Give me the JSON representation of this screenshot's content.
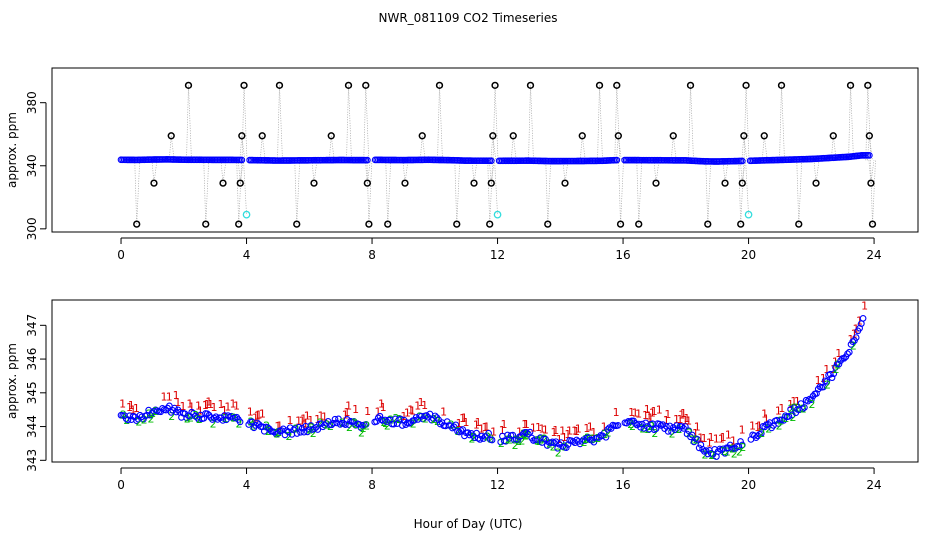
{
  "title": "NWR_081109  CO2 Timeseries",
  "xlabel": "Hour of Day (UTC)",
  "colors": {
    "blue": "#0000ff",
    "black": "#000000",
    "cyan": "#33dddd",
    "green": "#00bb00",
    "red": "#dd0000",
    "grey": "#9a9a9a"
  },
  "chart_data": [
    {
      "type": "scatter",
      "name": "top-panel",
      "ylabel": "approx. ppm",
      "xlim": [
        -2.2,
        25.4
      ],
      "ylim": [
        298,
        402
      ],
      "xticks": [
        0,
        4,
        8,
        12,
        16,
        20,
        24
      ],
      "yticks": [
        300,
        340,
        380
      ],
      "xtick_labels": [
        "0",
        "4",
        "8",
        "12",
        "16",
        "20",
        "24"
      ],
      "ytick_labels": [
        "300",
        "340",
        "380"
      ],
      "baseline": {
        "from_hour": 0,
        "to_hour": 23.9,
        "typical_ppm": 343.5,
        "description": "continuous ~343-347 ppm trace (blue circles)"
      },
      "spikes_high_ppm": 391,
      "spikes_mid_ppm": 359,
      "spikes_low_ppm": 329,
      "spikes_bottom_ppm": 303,
      "calibration_ppm": 309,
      "spikes": [
        {
          "x": 0.5,
          "y": 303
        },
        {
          "x": 1.05,
          "y": 329
        },
        {
          "x": 1.6,
          "y": 359
        },
        {
          "x": 2.15,
          "y": 391
        },
        {
          "x": 2.7,
          "y": 303
        },
        {
          "x": 3.25,
          "y": 329
        },
        {
          "x": 3.75,
          "y": 303
        },
        {
          "x": 3.8,
          "y": 329
        },
        {
          "x": 3.85,
          "y": 359
        },
        {
          "x": 3.92,
          "y": 391
        },
        {
          "x": 4.5,
          "y": 359
        },
        {
          "x": 5.05,
          "y": 391
        },
        {
          "x": 5.6,
          "y": 303
        },
        {
          "x": 6.15,
          "y": 329
        },
        {
          "x": 6.7,
          "y": 359
        },
        {
          "x": 7.25,
          "y": 391
        },
        {
          "x": 7.8,
          "y": 391
        },
        {
          "x": 7.85,
          "y": 329
        },
        {
          "x": 7.9,
          "y": 303
        },
        {
          "x": 8.5,
          "y": 303
        },
        {
          "x": 9.05,
          "y": 329
        },
        {
          "x": 9.6,
          "y": 359
        },
        {
          "x": 10.15,
          "y": 391
        },
        {
          "x": 10.7,
          "y": 303
        },
        {
          "x": 11.25,
          "y": 329
        },
        {
          "x": 11.75,
          "y": 303
        },
        {
          "x": 11.8,
          "y": 329
        },
        {
          "x": 11.85,
          "y": 359
        },
        {
          "x": 11.92,
          "y": 391
        },
        {
          "x": 12.5,
          "y": 359
        },
        {
          "x": 13.05,
          "y": 391
        },
        {
          "x": 13.6,
          "y": 303
        },
        {
          "x": 14.15,
          "y": 329
        },
        {
          "x": 14.7,
          "y": 359
        },
        {
          "x": 15.25,
          "y": 391
        },
        {
          "x": 15.8,
          "y": 391
        },
        {
          "x": 15.85,
          "y": 359
        },
        {
          "x": 15.92,
          "y": 303
        },
        {
          "x": 16.5,
          "y": 303
        },
        {
          "x": 17.05,
          "y": 329
        },
        {
          "x": 17.6,
          "y": 359
        },
        {
          "x": 18.15,
          "y": 391
        },
        {
          "x": 18.7,
          "y": 303
        },
        {
          "x": 19.25,
          "y": 329
        },
        {
          "x": 19.75,
          "y": 303
        },
        {
          "x": 19.8,
          "y": 329
        },
        {
          "x": 19.85,
          "y": 359
        },
        {
          "x": 19.92,
          "y": 391
        },
        {
          "x": 20.5,
          "y": 359
        },
        {
          "x": 21.05,
          "y": 391
        },
        {
          "x": 21.6,
          "y": 303
        },
        {
          "x": 22.15,
          "y": 329
        },
        {
          "x": 22.7,
          "y": 359
        },
        {
          "x": 23.25,
          "y": 391
        },
        {
          "x": 23.8,
          "y": 391
        },
        {
          "x": 23.85,
          "y": 359
        },
        {
          "x": 23.9,
          "y": 329
        },
        {
          "x": 23.95,
          "y": 303
        }
      ],
      "calibration_points": [
        {
          "x": 4.0,
          "y": 309
        },
        {
          "x": 12.0,
          "y": 309
        },
        {
          "x": 20.0,
          "y": 309
        }
      ]
    },
    {
      "type": "scatter",
      "name": "bottom-panel",
      "ylabel": "approx. ppm",
      "xlim": [
        -2.2,
        25.4
      ],
      "ylim": [
        342.95,
        347.75
      ],
      "xticks": [
        0,
        4,
        8,
        12,
        16,
        20,
        24
      ],
      "yticks": [
        343,
        344,
        345,
        346,
        347
      ],
      "xtick_labels": [
        "0",
        "4",
        "8",
        "12",
        "16",
        "20",
        "24"
      ],
      "ytick_labels": [
        "343",
        "344",
        "345",
        "346",
        "347"
      ],
      "marker_labels": [
        "1",
        "2"
      ],
      "gaps_hours": [
        [
          3.85,
          4.05
        ],
        [
          7.85,
          8.05
        ],
        [
          11.85,
          12.05
        ],
        [
          15.85,
          16.05
        ],
        [
          19.85,
          20.05
        ]
      ],
      "trend": [
        {
          "x": 0.0,
          "y": 344.3
        },
        {
          "x": 0.5,
          "y": 344.2
        },
        {
          "x": 1.0,
          "y": 344.45
        },
        {
          "x": 1.5,
          "y": 344.55
        },
        {
          "x": 2.0,
          "y": 344.35
        },
        {
          "x": 3.0,
          "y": 344.25
        },
        {
          "x": 3.8,
          "y": 344.2
        },
        {
          "x": 4.1,
          "y": 344.1
        },
        {
          "x": 5.0,
          "y": 343.8
        },
        {
          "x": 6.0,
          "y": 343.95
        },
        {
          "x": 7.0,
          "y": 344.15
        },
        {
          "x": 7.8,
          "y": 344.05
        },
        {
          "x": 8.1,
          "y": 344.25
        },
        {
          "x": 9.0,
          "y": 344.1
        },
        {
          "x": 9.8,
          "y": 344.3
        },
        {
          "x": 10.5,
          "y": 344.05
        },
        {
          "x": 11.0,
          "y": 343.75
        },
        {
          "x": 11.8,
          "y": 343.7
        },
        {
          "x": 12.1,
          "y": 343.65
        },
        {
          "x": 13.0,
          "y": 343.75
        },
        {
          "x": 13.7,
          "y": 343.45
        },
        {
          "x": 14.5,
          "y": 343.5
        },
        {
          "x": 15.3,
          "y": 343.65
        },
        {
          "x": 15.8,
          "y": 344.1
        },
        {
          "x": 16.1,
          "y": 344.1
        },
        {
          "x": 17.0,
          "y": 344.0
        },
        {
          "x": 18.0,
          "y": 343.9
        },
        {
          "x": 18.6,
          "y": 343.3
        },
        {
          "x": 19.0,
          "y": 343.2
        },
        {
          "x": 19.8,
          "y": 343.55
        },
        {
          "x": 20.1,
          "y": 343.7
        },
        {
          "x": 21.0,
          "y": 344.2
        },
        {
          "x": 22.0,
          "y": 344.8
        },
        {
          "x": 22.7,
          "y": 345.6
        },
        {
          "x": 23.2,
          "y": 346.2
        },
        {
          "x": 23.6,
          "y": 347.1
        }
      ]
    }
  ]
}
